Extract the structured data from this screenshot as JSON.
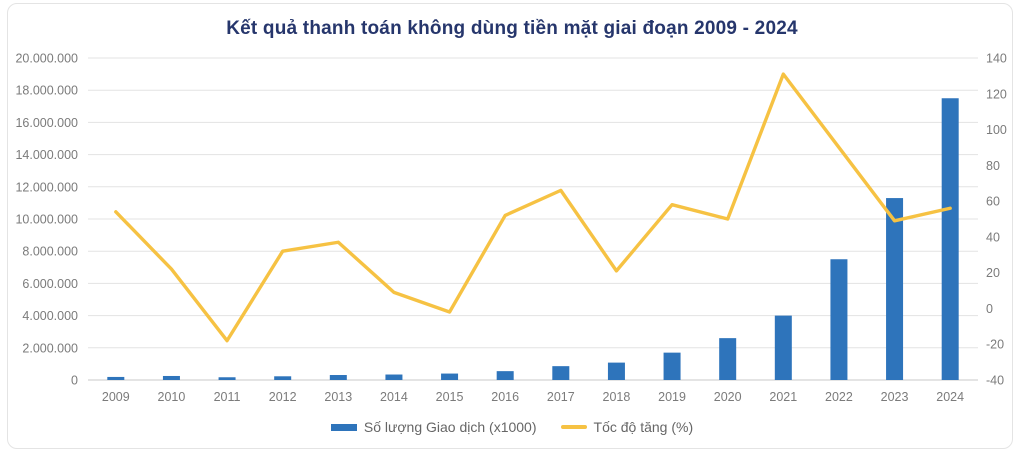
{
  "title": "Kết quả thanh toán không dùng tiền mặt giai đoạn 2009 - 2024",
  "colors": {
    "bar": "#2e74bb",
    "line": "#f6c243",
    "title_text": "#26366c",
    "axis_label": "#7b7b7b",
    "legend_text": "#666666",
    "gridline": "#e3e3e3",
    "zero_line": "#c8c8c8",
    "card_border": "#e4e4e4"
  },
  "chart_data": {
    "type": "bar",
    "subtype": "combo-bar-line",
    "title": "Kết quả thanh toán không dùng tiền mặt giai đoạn 2009 - 2024",
    "categories": [
      "2009",
      "2010",
      "2011",
      "2012",
      "2013",
      "2014",
      "2015",
      "2016",
      "2017",
      "2018",
      "2019",
      "2020",
      "2021",
      "2022",
      "2023",
      "2024"
    ],
    "series": [
      {
        "name": "Số lượng Giao dịch (x1000)",
        "type": "bar",
        "axis": "left",
        "values": [
          190000,
          250000,
          170000,
          230000,
          310000,
          340000,
          400000,
          550000,
          860000,
          1080000,
          1700000,
          2600000,
          4000000,
          7500000,
          11300000,
          17500000
        ]
      },
      {
        "name": "Tốc độ tăng (%)",
        "type": "line",
        "axis": "right",
        "values": [
          54,
          22,
          -18,
          32,
          37,
          9,
          -2,
          52,
          66,
          21,
          58,
          50,
          131,
          90,
          49,
          56
        ]
      }
    ],
    "left_axis": {
      "min": 0,
      "max": 20000000,
      "step": 2000000,
      "tick_labels": [
        "0",
        "2.000.000",
        "4.000.000",
        "6.000.000",
        "8.000.000",
        "10.000.000",
        "12.000.000",
        "14.000.000",
        "16.000.000",
        "18.000.000",
        "20.000.000"
      ]
    },
    "right_axis": {
      "min": -40,
      "max": 140,
      "step": 20,
      "tick_labels": [
        "-40",
        "-20",
        "0",
        "20",
        "40",
        "60",
        "80",
        "100",
        "120",
        "140"
      ]
    },
    "grid": true,
    "legend_position": "bottom"
  }
}
